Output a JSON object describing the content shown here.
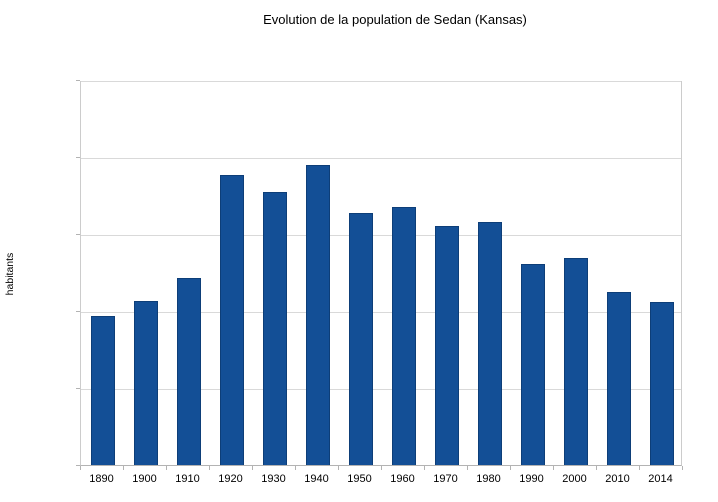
{
  "chart_data": {
    "type": "bar",
    "title": "Evolution de la population de Sedan (Kansas)",
    "xlabel": "",
    "ylabel": "habitants",
    "categories": [
      "1890",
      "1900",
      "1910",
      "1920",
      "1930",
      "1940",
      "1950",
      "1960",
      "1970",
      "1980",
      "1990",
      "2000",
      "2010",
      "2014"
    ],
    "values": [
      969,
      1064,
      1213,
      1884,
      1776,
      1947,
      1637,
      1675,
      1552,
      1579,
      1307,
      1342,
      1124,
      1061
    ],
    "ylim": [
      0,
      2500
    ],
    "yticks": [
      0,
      500,
      1000,
      1500,
      2000,
      2500
    ],
    "grid": true,
    "legend": "none"
  },
  "colors": {
    "bar_fill": "#134f96",
    "bar_border": "#0d3e78",
    "gridline": "#d9d9d9",
    "plot_border": "#cccccc",
    "axis_tick": "#b3b3b3",
    "text": "#000000",
    "background": "#ffffff"
  }
}
